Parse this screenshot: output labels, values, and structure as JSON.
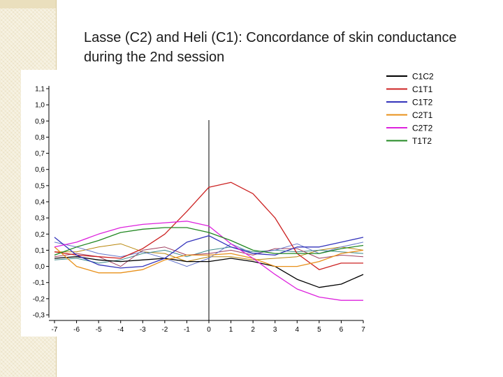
{
  "slide": {
    "title": "Lasse (C2) and Heli (C1): Concordance of skin conductance during the 2nd session"
  },
  "chart_data": {
    "type": "line",
    "title": "Lasse (C2) and Heli (C1): Concordance of skin conductance during the 2nd session",
    "xlabel": "",
    "ylabel": "",
    "xlim": [
      -7,
      7
    ],
    "ylim": [
      -0.3,
      1.1
    ],
    "x": [
      -7,
      -6,
      -5,
      -4,
      -3,
      -2,
      -1,
      0,
      1,
      2,
      3,
      4,
      5,
      6,
      7
    ],
    "x_tick_labels": [
      "-7",
      "-6",
      "-5",
      "-4",
      "-3",
      "-2",
      "-1",
      "0",
      "1",
      "2",
      "3",
      "4",
      "5",
      "6",
      "7"
    ],
    "y_ticks": [
      1.1,
      1.0,
      0.9,
      0.8,
      0.7,
      0.6,
      0.5,
      0.4,
      0.3,
      0.2,
      0.1,
      0.0,
      -0.1,
      -0.2,
      -0.3
    ],
    "y_tick_labels": [
      "1,1",
      "1,0",
      "0,9",
      "0,8",
      "0,7",
      "0,6",
      "0,5",
      "0,4",
      "0,3",
      "0,2",
      "0,1",
      "0,0",
      "-0,1",
      "-0,2",
      "-0,3"
    ],
    "zero_line_x": 0,
    "legend_position": "top-right",
    "series": [
      {
        "name": "C1C2",
        "color": "#000000",
        "values": [
          0.05,
          0.06,
          0.04,
          0.03,
          0.04,
          0.05,
          0.03,
          0.03,
          0.05,
          0.03,
          0.0,
          -0.08,
          -0.13,
          -0.11,
          -0.05
        ]
      },
      {
        "name": "C1T1",
        "color": "#cc2222",
        "values": [
          0.09,
          0.07,
          0.06,
          0.05,
          0.11,
          0.2,
          0.34,
          0.49,
          0.52,
          0.45,
          0.3,
          0.08,
          -0.02,
          0.02,
          0.02
        ]
      },
      {
        "name": "C1T2",
        "color": "#3333bb",
        "values": [
          0.18,
          0.07,
          0.01,
          -0.01,
          0.0,
          0.05,
          0.15,
          0.19,
          0.12,
          0.08,
          0.07,
          0.12,
          0.12,
          0.15,
          0.18
        ]
      },
      {
        "name": "C2T1",
        "color": "#e8901a",
        "values": [
          0.12,
          0.0,
          -0.04,
          -0.04,
          -0.02,
          0.04,
          0.07,
          0.07,
          0.08,
          0.05,
          0.0,
          0.0,
          0.03,
          0.08,
          0.1
        ]
      },
      {
        "name": "C2T2",
        "color": "#dd22dd",
        "values": [
          0.12,
          0.15,
          0.2,
          0.24,
          0.26,
          0.27,
          0.28,
          0.25,
          0.14,
          0.05,
          -0.05,
          -0.14,
          -0.19,
          -0.21,
          -0.21
        ]
      },
      {
        "name": "T1T2",
        "color": "#228822",
        "values": [
          0.07,
          0.12,
          0.16,
          0.21,
          0.23,
          0.24,
          0.24,
          0.21,
          0.16,
          0.1,
          0.08,
          0.08,
          0.08,
          0.11,
          0.13
        ]
      },
      {
        "name": "",
        "color": "#b8860b",
        "values": [
          0.09,
          0.09,
          0.12,
          0.14,
          0.09,
          0.08,
          0.03,
          0.06,
          0.06,
          0.04,
          0.05,
          0.06,
          0.1,
          0.12,
          0.1
        ]
      },
      {
        "name": "",
        "color": "#3a8a8a",
        "values": [
          0.04,
          0.05,
          0.02,
          0.04,
          0.08,
          0.1,
          0.06,
          0.1,
          0.12,
          0.09,
          0.1,
          0.09,
          0.1,
          0.09,
          0.08
        ]
      },
      {
        "name": "",
        "color": "#a04060",
        "values": [
          0.06,
          0.08,
          0.06,
          0.0,
          0.1,
          0.12,
          0.07,
          0.08,
          0.1,
          0.07,
          0.11,
          0.11,
          0.05,
          0.07,
          0.06
        ]
      },
      {
        "name": "",
        "color": "#6677cc",
        "values": [
          0.15,
          0.12,
          0.08,
          0.06,
          0.09,
          0.05,
          0.0,
          0.05,
          0.14,
          0.08,
          0.1,
          0.14,
          0.08,
          0.12,
          0.15
        ]
      }
    ]
  }
}
